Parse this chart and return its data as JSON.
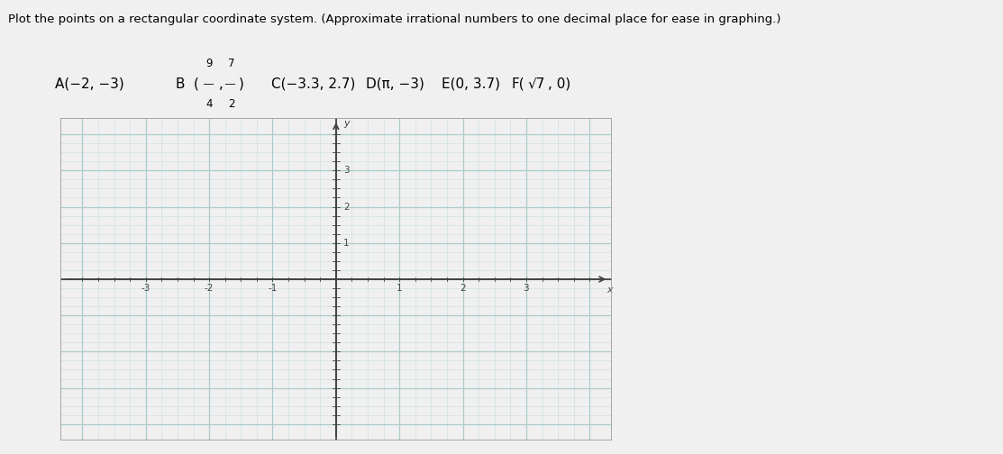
{
  "title_line1": "Plot the points on a rectangular coordinate system. (Approximate irrational numbers to one decimal place for ease in graphing.)",
  "xmin": -4,
  "xmax": 4,
  "ymin": -4,
  "ymax": 4,
  "major_tick_interval": 1,
  "minor_tick_interval": 0.25,
  "grid_major_color": "#aacccc",
  "grid_minor_color": "#c8dede",
  "axis_color": "#444444",
  "plot_bg_color": "#d8eaea",
  "outer_bg_color": "#f0f0f0",
  "border_color": "#999999",
  "ytick_labels_pos": [
    1,
    2,
    3
  ],
  "xtick_labels_neg": [
    -3,
    -2,
    -1
  ],
  "xtick_labels_pos": [
    1,
    2,
    3
  ],
  "title_fontsize": 9.5,
  "subtitle_fontsize": 11
}
